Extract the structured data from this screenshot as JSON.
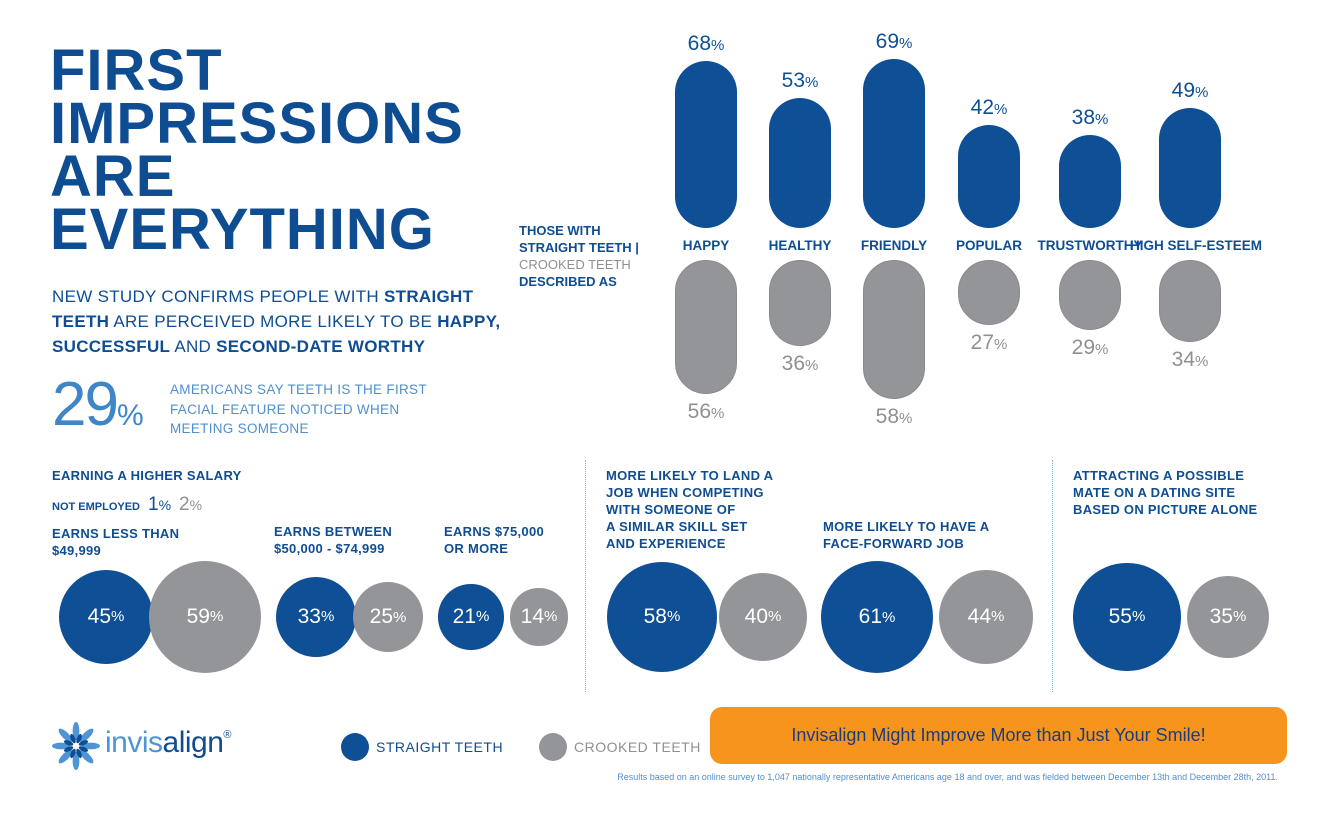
{
  "title_lines": [
    "FIRST",
    "IMPRESSIONS",
    "ARE",
    "EVERYTHING"
  ],
  "subtitle": {
    "p1": "NEW STUDY CONFIRMS PEOPLE WITH ",
    "b1": "STRAIGHT TEETH",
    "p2": " ARE PERCEIVED MORE LIKELY TO BE ",
    "b2": "HAPPY, SUCCESSFUL",
    "p3": " AND ",
    "b3": "SECOND-DATE WORTHY"
  },
  "stat29": {
    "value": "29",
    "unit": "%",
    "text": "AMERICANS SAY TEETH IS THE FIRST FACIAL FEATURE NOTICED WHEN MEETING SOMEONE"
  },
  "legend_desc": {
    "line1": "THOSE WITH",
    "line2": "STRAIGHT TEETH |",
    "line3": "CROOKED TEETH",
    "line4": "DESCRIBED AS"
  },
  "pct_unit": "%",
  "chart_data": [
    {
      "type": "bar",
      "categories": [
        "HAPPY",
        "HEALTHY",
        "FRIENDLY",
        "POPULAR",
        "TRUSTWORTHY",
        "HIGH SELF-ESTEEM"
      ],
      "series": [
        {
          "name": "STRAIGHT TEETH",
          "values": [
            68,
            53,
            69,
            42,
            38,
            49
          ]
        },
        {
          "name": "CROOKED TEETH",
          "values": [
            56,
            36,
            58,
            27,
            29,
            34
          ]
        }
      ],
      "ylim": [
        0,
        100
      ]
    },
    {
      "type": "bar",
      "title": "EARNING A HIGHER SALARY",
      "categories": [
        "EARNS LESS THAN $49,999",
        "EARNS BETWEEN $50,000 - $74,999",
        "EARNS $75,000 OR MORE"
      ],
      "series": [
        {
          "name": "STRAIGHT TEETH",
          "values": [
            45,
            33,
            21
          ]
        },
        {
          "name": "CROOKED TEETH",
          "values": [
            59,
            25,
            14
          ]
        }
      ],
      "annotations": [
        {
          "label": "NOT EMPLOYED",
          "straight": 1,
          "crooked": 2
        }
      ]
    },
    {
      "type": "bar",
      "categories": [
        "MORE LIKELY TO LAND A JOB WHEN COMPETING WITH SOMEONE OF A SIMILAR SKILL SET AND EXPERIENCE",
        "MORE LIKELY TO HAVE A FACE-FORWARD JOB"
      ],
      "series": [
        {
          "name": "STRAIGHT TEETH",
          "values": [
            58,
            61
          ]
        },
        {
          "name": "CROOKED TEETH",
          "values": [
            40,
            44
          ]
        }
      ]
    },
    {
      "type": "bar",
      "categories": [
        "ATTRACTING A POSSIBLE MATE ON A DATING SITE BASED ON PICTURE ALONE"
      ],
      "series": [
        {
          "name": "STRAIGHT TEETH",
          "values": [
            55
          ]
        },
        {
          "name": "CROOKED TEETH",
          "values": [
            35
          ]
        }
      ]
    }
  ],
  "salary": {
    "heading": "EARNING A HIGHER SALARY",
    "not_employed_label": "NOT EMPLOYED",
    "ne_straight": "1",
    "ne_crooked": "2",
    "groups": [
      {
        "label_lines": [
          "EARNS LESS THAN",
          "$49,999"
        ]
      },
      {
        "label_lines": [
          "EARNS BETWEEN",
          "$50,000 - $74,999"
        ]
      },
      {
        "label_lines": [
          "EARNS $75,000",
          "OR MORE"
        ]
      }
    ]
  },
  "job": {
    "land_lines": [
      "MORE LIKELY TO LAND A",
      "JOB WHEN COMPETING",
      "WITH SOMEONE OF",
      "A SIMILAR SKILL SET",
      "AND EXPERIENCE"
    ],
    "face_lines": [
      "MORE LIKELY TO HAVE A",
      "FACE-FORWARD JOB"
    ]
  },
  "dating": {
    "lines": [
      "ATTRACTING A POSSIBLE",
      "MATE ON A DATING SITE",
      "BASED ON PICTURE ALONE"
    ]
  },
  "brand": {
    "logo_part1": "invis",
    "logo_part2": "align",
    "registered": "®"
  },
  "key": {
    "straight_label": "STRAIGHT TEETH",
    "crooked_label": "CROOKED TEETH"
  },
  "cta": "Invisalign Might Improve More than Just Your Smile!",
  "footnote": "Results based on an online survey to 1,047 nationally representative Americans age 18 and over, and was fielded between December 13th and December 28th, 2011.",
  "colors": {
    "straight": "#0e4f96",
    "crooked": "#939598",
    "accent": "#f7941d",
    "title": "#0f4d92"
  }
}
